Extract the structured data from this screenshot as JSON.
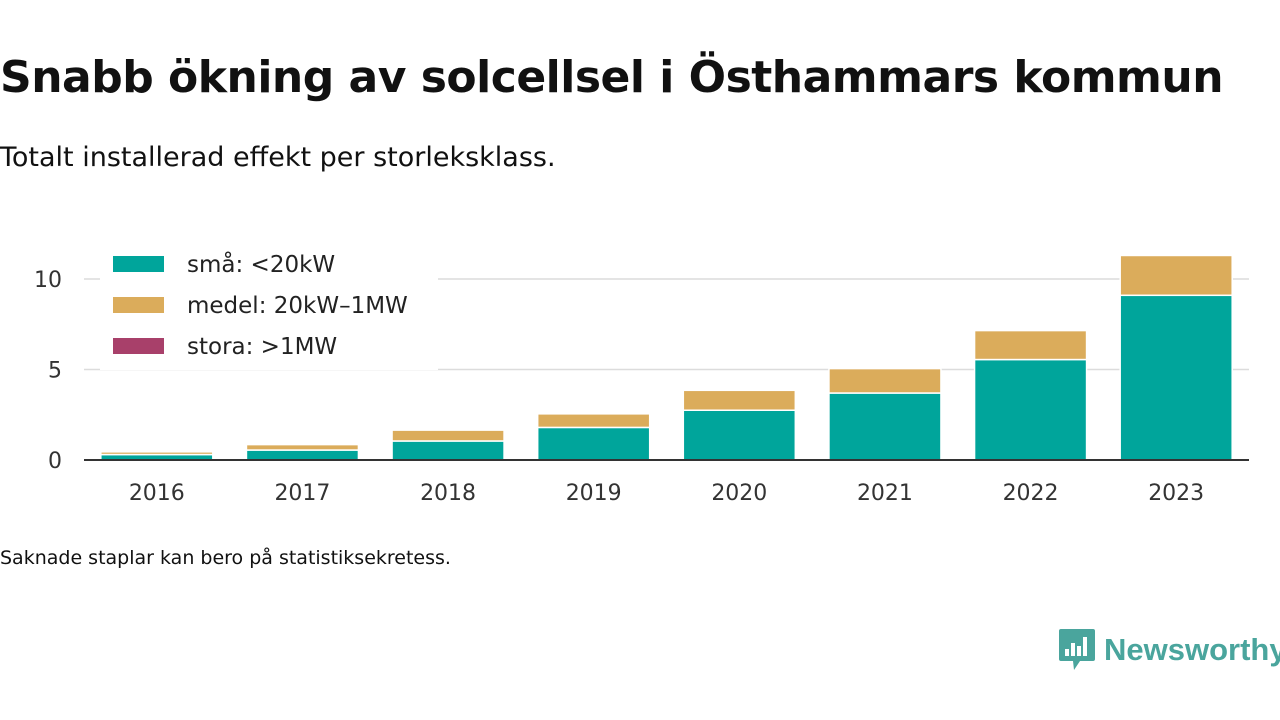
{
  "title": "Snabb ökning av solcellsel i Östhammars kommun",
  "subtitle": "Totalt installerad effekt per storleksklass.",
  "note": "Saknade staplar kan bero på statistiksekretess.",
  "brand": {
    "name": "Newsworthy",
    "color": "#4aa59d",
    "icon": "newsworthy-chart-bubble-icon"
  },
  "chart_data": {
    "type": "bar",
    "stacked": true,
    "categories": [
      "2016",
      "2017",
      "2018",
      "2019",
      "2020",
      "2021",
      "2022",
      "2023"
    ],
    "series": [
      {
        "name": "små: <20kW",
        "color": "#00a59b",
        "values": [
          0.3,
          0.55,
          1.05,
          1.8,
          2.75,
          3.7,
          5.55,
          9.1
        ]
      },
      {
        "name": "medel: 20kW–1MW",
        "color": "#dbac5b",
        "values": [
          0.15,
          0.3,
          0.6,
          0.75,
          1.1,
          1.35,
          1.6,
          2.2
        ]
      },
      {
        "name": "stora: >1MW",
        "color": "#a8406a",
        "values": [
          0,
          0,
          0,
          0,
          0,
          0,
          0,
          0
        ]
      }
    ],
    "yticks": [
      0,
      5,
      10
    ],
    "ylim": [
      0,
      12
    ],
    "grid": true,
    "legend_position": "top-left",
    "xlabel": "",
    "ylabel": ""
  }
}
